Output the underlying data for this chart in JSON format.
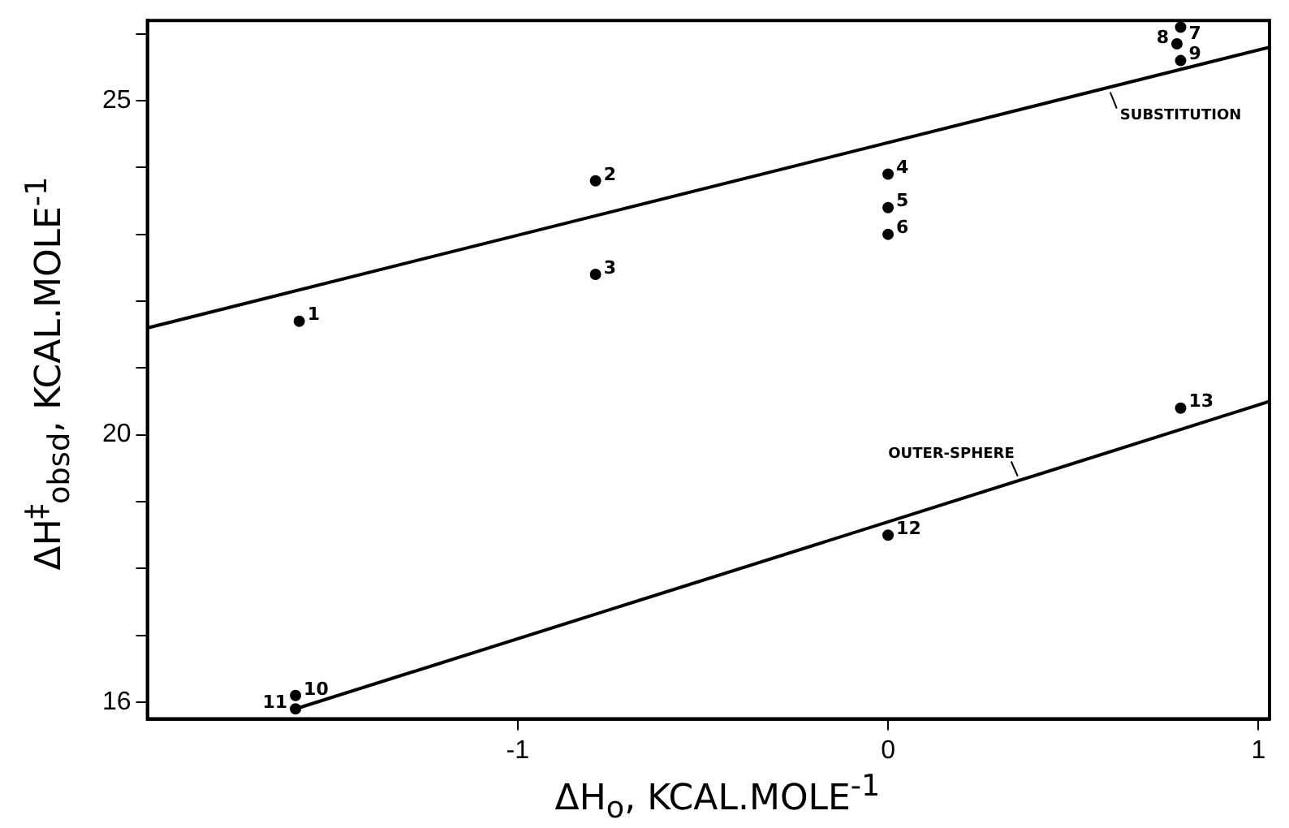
{
  "chart_data": {
    "type": "scatter",
    "xlabel": "ΔH$_{o}$, KCAL.MOLE$^{-1}$",
    "ylabel": "ΔH$^{‡}$$_{obsd}$, KCAL.MOLE$^{-1}$",
    "xlim": [
      -2.0,
      1.03
    ],
    "ylim": [
      15.75,
      26.2
    ],
    "xticks": [
      -1,
      0,
      1
    ],
    "yticks": [
      16,
      {
        "value": 17,
        "label": null
      },
      {
        "value": 18,
        "label": null
      },
      {
        "value": 19,
        "label": null
      },
      20,
      {
        "value": 21,
        "label": null
      },
      {
        "value": 22,
        "label": null
      },
      {
        "value": 23,
        "label": null
      },
      {
        "value": 24,
        "label": null
      },
      25,
      {
        "value": 26,
        "label": null
      }
    ],
    "grid": false,
    "legend": false,
    "marker": "circle",
    "series": [
      {
        "color": "#000000",
        "x": [
          -1.59,
          -0.79,
          -0.79,
          0.0,
          0.0,
          0.0,
          0.79,
          0.78,
          0.79,
          -1.6,
          -1.6,
          0.0,
          0.79
        ],
        "values": [
          21.7,
          23.8,
          22.4,
          23.9,
          23.4,
          23.0,
          26.1,
          25.85,
          25.6,
          16.1,
          15.9,
          18.5,
          20.4
        ]
      },
      {
        "type": "line",
        "color": "#000000",
        "marker": "none",
        "line_style": "solid",
        "x": [
          -2.0,
          1.03
        ],
        "values": [
          21.6,
          25.8
        ]
      },
      {
        "type": "line",
        "color": "#000000",
        "marker": "none",
        "line_style": "solid",
        "x": [
          -1.6,
          1.03
        ],
        "values": [
          15.9,
          20.5
        ]
      }
    ],
    "annotations": [
      {
        "text": "1",
        "x": -1.59,
        "y": 21.7
      },
      {
        "text": "2",
        "x": -0.79,
        "y": 23.8
      },
      {
        "text": "3",
        "x": -0.79,
        "y": 22.4
      },
      {
        "text": "4",
        "x": 0.0,
        "y": 23.9
      },
      {
        "text": "5",
        "x": 0.0,
        "y": 23.4
      },
      {
        "text": "6",
        "x": 0.0,
        "y": 23.0
      },
      {
        "text": "7",
        "x": 0.79,
        "y": 26.1
      },
      {
        "text": "8",
        "x": 0.78,
        "y": 25.85
      },
      {
        "text": "9",
        "x": 0.79,
        "y": 25.6
      },
      {
        "text": "10",
        "x": -1.6,
        "y": 16.1
      },
      {
        "text": "11",
        "x": -1.6,
        "y": 15.9
      },
      {
        "text": "12",
        "x": 0.0,
        "y": 18.5
      },
      {
        "text": "13",
        "x": 0.79,
        "y": 20.4
      },
      {
        "text": "SUBSTITUTION",
        "x": 0.6,
        "y": 25.2
      },
      {
        "text": "OUTER-SPHERE",
        "x": 0.35,
        "y": 19.31
      }
    ]
  }
}
